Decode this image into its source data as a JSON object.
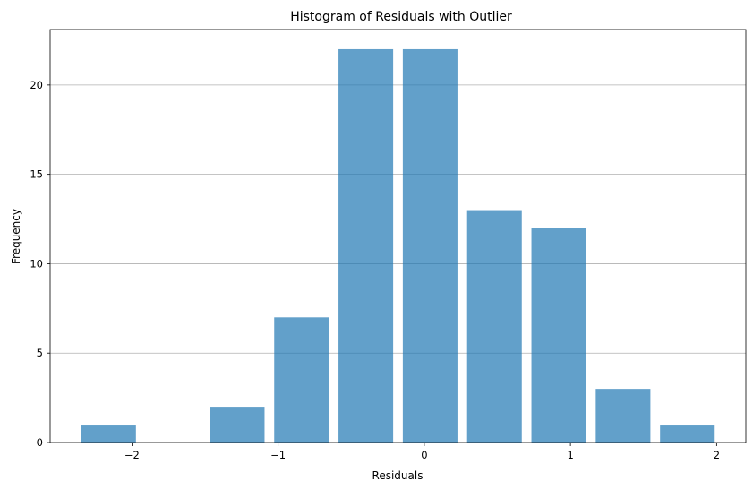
{
  "chart_data": {
    "type": "bar",
    "title": "Histogram of Residuals with Outlier",
    "xlabel": "Residuals",
    "ylabel": "Frequency",
    "bins": [
      {
        "start": -2.38,
        "end": -1.94,
        "count": 1
      },
      {
        "start": -1.94,
        "end": -1.5,
        "count": 0
      },
      {
        "start": -1.5,
        "end": -1.06,
        "count": 2
      },
      {
        "start": -1.06,
        "end": -0.62,
        "count": 7
      },
      {
        "start": -0.62,
        "end": -0.18,
        "count": 22
      },
      {
        "start": -0.18,
        "end": 0.26,
        "count": 22
      },
      {
        "start": 0.26,
        "end": 0.7,
        "count": 13
      },
      {
        "start": 0.7,
        "end": 1.14,
        "count": 12
      },
      {
        "start": 1.14,
        "end": 1.58,
        "count": 3
      },
      {
        "start": 1.58,
        "end": 2.02,
        "count": 1
      }
    ],
    "bar_width_fraction": 0.85,
    "bar_color": "#1f77b4",
    "bar_opacity": 0.7,
    "xlim": [
      -2.56,
      2.2
    ],
    "ylim": [
      0,
      23.1
    ],
    "xticks": [
      -2,
      -1,
      0,
      1,
      2
    ],
    "xtick_labels": [
      "−2",
      "−1",
      "0",
      "1",
      "2"
    ],
    "yticks": [
      0,
      5,
      10,
      15,
      20
    ],
    "ytick_labels": [
      "0",
      "5",
      "10",
      "15",
      "20"
    ],
    "grid": "y-axis only"
  }
}
